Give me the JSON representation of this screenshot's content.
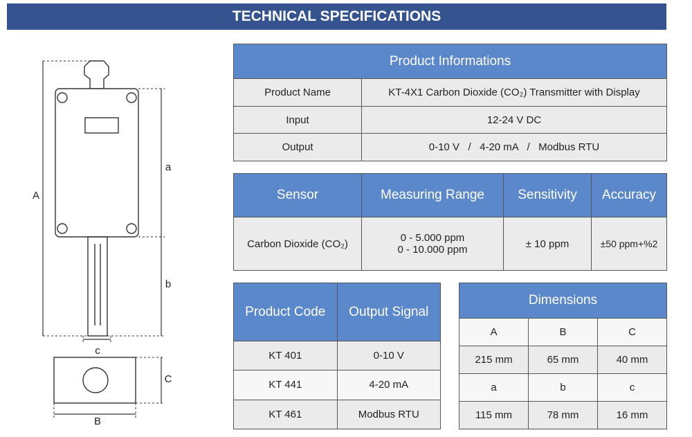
{
  "header": {
    "title": "TECHNICAL SPECIFICATIONS"
  },
  "drawing": {
    "labels": {
      "A": "A",
      "a": "a",
      "b": "b",
      "c": "c",
      "C": "C",
      "B": "B"
    }
  },
  "product_info": {
    "title": "Product Informations",
    "rows": [
      [
        "Product Name",
        "KT-4X1 Carbon Dioxide (CO₂) Transmitter with Display"
      ],
      [
        "Input",
        "12-24 V DC"
      ],
      [
        "Output",
        "0-10 V   /   4-20 mA   /   Modbus RTU"
      ]
    ]
  },
  "sensor": {
    "headers": [
      "Sensor",
      "Measuring Range",
      "Sensitivity",
      "Accuracy"
    ],
    "row": [
      "Carbon Dioxide (CO₂)",
      [
        "0 - 5.000 ppm",
        "0 - 10.000 ppm"
      ],
      "± 10 ppm",
      "±50 ppm+%2"
    ]
  },
  "codes": {
    "headers": [
      "Product Code",
      "Output Signal"
    ],
    "rows": [
      [
        "KT 401",
        "0-10 V"
      ],
      [
        "KT 441",
        "4-20 mA"
      ],
      [
        "KT 461",
        "Modbus RTU"
      ]
    ]
  },
  "dimensions": {
    "title": "Dimensions",
    "headers": [
      "A",
      "B",
      "C"
    ],
    "rows": [
      [
        "215 mm",
        "65 mm",
        "40 mm"
      ],
      [
        "a",
        "b",
        "c"
      ],
      [
        "115 mm",
        "78 mm",
        "16 mm"
      ]
    ]
  }
}
